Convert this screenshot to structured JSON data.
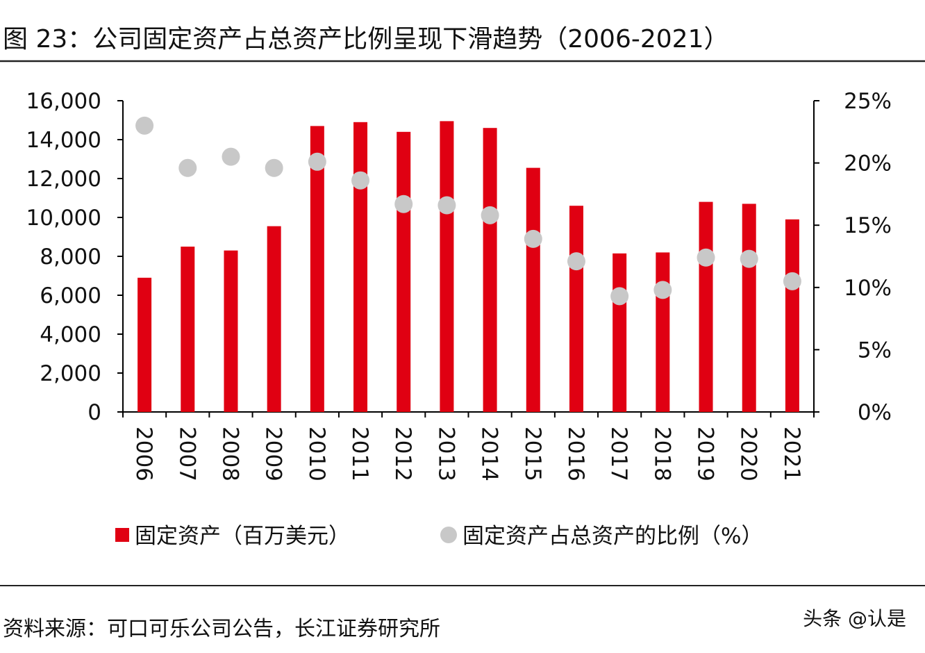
{
  "header": {
    "title": "图 23：公司固定资产占总资产比例呈现下滑趋势（2006-2021）"
  },
  "footer": {
    "source": "资料来源：可口可乐公司公告，长江证券研究所",
    "watermark": "头条 @认是"
  },
  "colors": {
    "bar": "#e00012",
    "dot": "#c8c8c8",
    "axis": "#000000"
  },
  "chart_data": {
    "type": "bar",
    "title": "",
    "xlabel": "",
    "categories": [
      "2006",
      "2007",
      "2008",
      "2009",
      "2010",
      "2011",
      "2012",
      "2013",
      "2014",
      "2015",
      "2016",
      "2017",
      "2018",
      "2019",
      "2020",
      "2021"
    ],
    "y_left": {
      "lim": [
        0,
        16000
      ],
      "ticks": [
        "0",
        "2,000",
        "4,000",
        "6,000",
        "8,000",
        "10,000",
        "12,000",
        "14,000",
        "16,000"
      ]
    },
    "y_right": {
      "lim": [
        0,
        25
      ],
      "ticks": [
        "0%",
        "5%",
        "10%",
        "15%",
        "20%",
        "25%"
      ]
    },
    "grid": false,
    "legend_position": "bottom",
    "series": [
      {
        "name": "固定资产（百万美元）",
        "type": "bar",
        "axis": "left",
        "values": [
          6900,
          8500,
          8300,
          9550,
          14700,
          14900,
          14400,
          14950,
          14600,
          12550,
          10600,
          8150,
          8200,
          10800,
          10700,
          9900
        ]
      },
      {
        "name": "固定资产占总资产的比例（%）",
        "type": "scatter",
        "axis": "right",
        "values": [
          23.0,
          19.6,
          20.5,
          19.6,
          20.1,
          18.6,
          16.7,
          16.6,
          15.8,
          13.9,
          12.1,
          9.3,
          9.8,
          12.4,
          12.3,
          10.5
        ]
      }
    ]
  }
}
